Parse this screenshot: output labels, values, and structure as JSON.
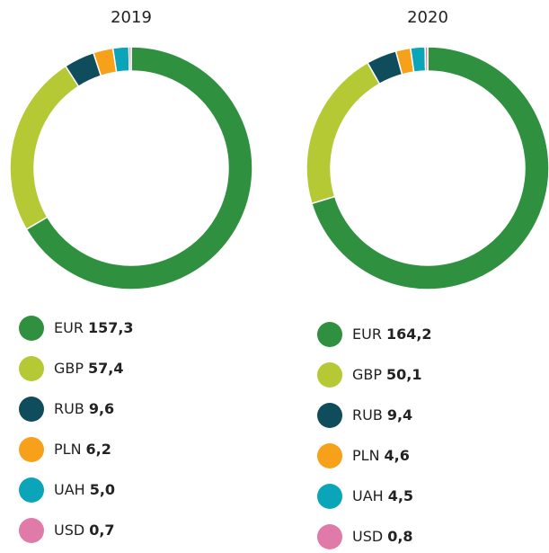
{
  "chart_data": [
    {
      "type": "pie",
      "donut": true,
      "title": "2019",
      "categories": [
        "EUR",
        "GBP",
        "RUB",
        "PLN",
        "UAH",
        "USD"
      ],
      "values": [
        157.3,
        57.4,
        9.6,
        6.2,
        5.0,
        0.7
      ],
      "value_labels": [
        "157,3",
        "57,4",
        "9,6",
        "6,2",
        "5,0",
        "0,7"
      ],
      "colors": [
        "#2f9140",
        "#b5c934",
        "#0f4c5c",
        "#f7a11a",
        "#0aa5b8",
        "#e07aa8"
      ]
    },
    {
      "type": "pie",
      "donut": true,
      "title": "2020",
      "categories": [
        "EUR",
        "GBP",
        "RUB",
        "PLN",
        "UAH",
        "USD"
      ],
      "values": [
        164.2,
        50.1,
        9.4,
        4.6,
        4.5,
        0.8
      ],
      "value_labels": [
        "164,2",
        "50,1",
        "9,4",
        "4,6",
        "4,5",
        "0,8"
      ],
      "colors": [
        "#2f9140",
        "#b5c934",
        "#0f4c5c",
        "#f7a11a",
        "#0aa5b8",
        "#e07aa8"
      ]
    }
  ]
}
